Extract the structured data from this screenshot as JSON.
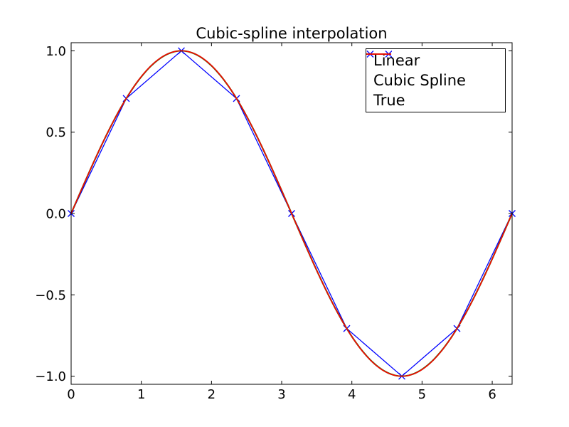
{
  "chart_data": {
    "type": "line",
    "title": "Cubic-spline interpolation",
    "xlabel": "",
    "ylabel": "",
    "xlim": [
      0,
      6.28318530718
    ],
    "ylim": [
      -1.05,
      1.05
    ],
    "grid": false,
    "tick_style": "inward, drawn on all four axes sides",
    "xticks": {
      "values": [
        0,
        1,
        2,
        3,
        4,
        5,
        6
      ],
      "labels": [
        "0",
        "1",
        "2",
        "3",
        "4",
        "5",
        "6"
      ]
    },
    "yticks": {
      "values": [
        1.0,
        0.5,
        0.0,
        -0.5,
        -1.0
      ],
      "labels": [
        "1.0",
        "0.5",
        "0.0",
        "−0.5",
        "−1.0"
      ]
    },
    "legend": {
      "position": "upper right",
      "border_color": "#000000",
      "background": "#ffffff"
    },
    "series": [
      {
        "name": "Linear",
        "type": "linear-interpolation",
        "color": "#0000ff",
        "marker": "x",
        "x": [
          0.0,
          0.7853982,
          1.5707963,
          2.3561945,
          3.1415927,
          3.9269908,
          4.712389,
          5.4977871,
          6.2831853
        ],
        "y": [
          0.0,
          0.7071068,
          1.0,
          0.7071068,
          0.0,
          -0.7071068,
          -1.0,
          -0.7071068,
          0.0
        ]
      },
      {
        "name": "Cubic Spline",
        "type": "cubic-spline",
        "color": "#008000",
        "interpolates": "same 9 nodes as Linear series"
      },
      {
        "name": "True",
        "type": "function",
        "fn": "sin(x)",
        "color": "#ff0000"
      }
    ]
  }
}
